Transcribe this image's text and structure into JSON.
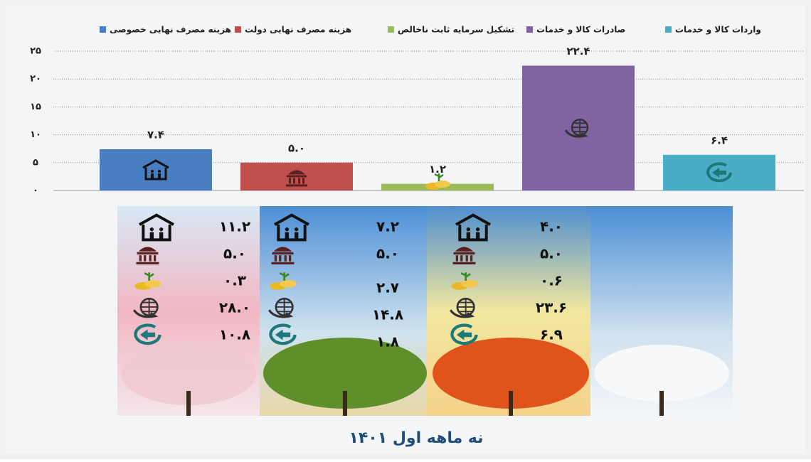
{
  "chart_data": {
    "type": "bar",
    "series": [
      {
        "name": "هزینه مصرف نهایی خصوصی",
        "color": "#4a7ec2",
        "values": [
          7.4
        ],
        "value_labels": [
          "۷.۴"
        ]
      },
      {
        "name": "هزینه مصرف نهایی دولت",
        "color": "#c0504d",
        "values": [
          5.0
        ],
        "value_labels": [
          "۵.۰"
        ]
      },
      {
        "name": "تشکیل سرمایه ثابت ناخالص",
        "color": "#9bbb59",
        "values": [
          1.2
        ],
        "value_labels": [
          "۱.۲"
        ]
      },
      {
        "name": "صادرات کالا و خدمات",
        "color": "#8064a2",
        "values": [
          22.4
        ],
        "value_labels": [
          "۲۲.۴"
        ]
      },
      {
        "name": "واردات کالا و خدمات",
        "color": "#4bacc6",
        "values": [
          6.4
        ],
        "value_labels": [
          "۶.۴"
        ]
      }
    ],
    "ylim": [
      0,
      25
    ],
    "yticks": [
      {
        "value": 0,
        "label": "۰"
      },
      {
        "value": 5,
        "label": "۵"
      },
      {
        "value": 10,
        "label": "۱۰"
      },
      {
        "value": 15,
        "label": "۱۵"
      },
      {
        "value": 20,
        "label": "۲۰"
      },
      {
        "value": 25,
        "label": "۲۵"
      }
    ],
    "grid": true
  },
  "seasons": [
    {
      "values": [
        "۱۱.۲",
        "۵.۰",
        "۰.۳",
        "۲۸.۰",
        "۱۰.۸"
      ]
    },
    {
      "values": [
        "۷.۲",
        "۵.۰",
        "۲.۷",
        "۱۴.۸",
        "۱.۸"
      ]
    },
    {
      "values": [
        "۴.۰",
        "۵.۰",
        "۰.۶",
        "۲۳.۶",
        "۶.۹"
      ]
    }
  ],
  "caption": "نه ماهه اول ۱۴۰۱"
}
